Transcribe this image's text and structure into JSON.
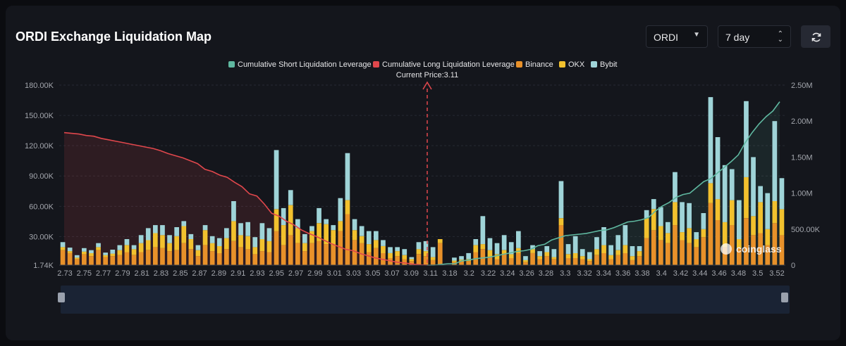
{
  "header": {
    "title": "ORDI Exchange Liquidation Map",
    "symbol": "ORDI",
    "range": "7 day",
    "symbol_icon": "chevron-down-icon",
    "range_icon": "up-down-icon",
    "refresh_icon": "refresh-icon"
  },
  "colors": {
    "short_line": "#5fb8a0",
    "long_line": "#e0474c",
    "binance": "#e8912a",
    "okx": "#f2c12e",
    "bybit": "#9fd4d8",
    "current_price": "#e0474c"
  },
  "watermark": "coinglass",
  "chart_data": {
    "type": "bar",
    "stacked": true,
    "legend": [
      "Cumulative Short Liquidation Leverage",
      "Cumulative Long Liquidation Leverage",
      "Binance",
      "OKX",
      "Bybit"
    ],
    "legend_position": "top",
    "current_price_label": "Current Price:3.11",
    "current_price": 3.11,
    "y_left": {
      "ticks": [
        "1.74K",
        "30.00K",
        "60.00K",
        "90.00K",
        "120.00K",
        "150.00K",
        "180.00K"
      ],
      "range": [
        1740,
        180000
      ]
    },
    "y_right": {
      "ticks": [
        "0",
        "500.00K",
        "1.00M",
        "1.50M",
        "2.00M",
        "2.50M"
      ],
      "range": [
        0,
        2500000
      ]
    },
    "x_tick_labels": [
      "2.73",
      "2.75",
      "2.77",
      "2.79",
      "2.81",
      "2.83",
      "2.85",
      "2.87",
      "2.89",
      "2.91",
      "2.93",
      "2.95",
      "2.97",
      "2.99",
      "3.01",
      "3.03",
      "3.05",
      "3.07",
      "3.09",
      "3.11",
      "3.18",
      "3.2",
      "3.22",
      "3.24",
      "3.26",
      "3.28",
      "3.3",
      "3.32",
      "3.34",
      "3.36",
      "3.38",
      "3.4",
      "3.42",
      "3.44",
      "3.46",
      "3.48",
      "3.5",
      "3.52"
    ],
    "grid": true,
    "bars": [
      [
        15000,
        3000,
        5000
      ],
      [
        12000,
        2000,
        3500
      ],
      [
        6000,
        1500,
        2500
      ],
      [
        11000,
        2500,
        3500
      ],
      [
        9000,
        3000,
        3000
      ],
      [
        15000,
        3000,
        4000
      ],
      [
        8000,
        2000,
        2500
      ],
      [
        9000,
        2500,
        4000
      ],
      [
        10000,
        5000,
        5000
      ],
      [
        13000,
        7000,
        6000
      ],
      [
        10000,
        6000,
        4000
      ],
      [
        13000,
        9000,
        8000
      ],
      [
        15000,
        10000,
        12000
      ],
      [
        18000,
        14000,
        8000
      ],
      [
        17000,
        13000,
        10000
      ],
      [
        14000,
        8000,
        8000
      ],
      [
        15000,
        14000,
        9000
      ],
      [
        22000,
        17000,
        5000
      ],
      [
        16000,
        10000,
        5000
      ],
      [
        9000,
        6000,
        5000
      ],
      [
        20000,
        15000,
        5000
      ],
      [
        14000,
        8000,
        7000
      ],
      [
        12000,
        7000,
        8000
      ],
      [
        16000,
        11000,
        10000
      ],
      [
        24000,
        20000,
        20000
      ],
      [
        18000,
        12000,
        12000
      ],
      [
        16000,
        13000,
        14000
      ],
      [
        11000,
        7000,
        10000
      ],
      [
        14000,
        12000,
        16000
      ],
      [
        13000,
        11000,
        13000
      ],
      [
        34000,
        22000,
        59000
      ],
      [
        20000,
        20000,
        17000
      ],
      [
        30000,
        30000,
        15000
      ],
      [
        22000,
        15000,
        9000
      ],
      [
        14000,
        8000,
        9000
      ],
      [
        22000,
        12000,
        5000
      ],
      [
        24000,
        18000,
        15000
      ],
      [
        21000,
        20000,
        5000
      ],
      [
        20000,
        15000,
        5000
      ],
      [
        34000,
        10000,
        23000
      ],
      [
        51000,
        14000,
        47000
      ],
      [
        25000,
        10000,
        11000
      ],
      [
        22000,
        7000,
        10000
      ],
      [
        13000,
        8000,
        13000
      ],
      [
        17000,
        8000,
        9000
      ],
      [
        12000,
        7000,
        6000
      ],
      [
        7000,
        5000,
        6000
      ],
      [
        9000,
        5000,
        4000
      ],
      [
        6000,
        4000,
        6000
      ],
      [
        4000,
        2000,
        2000
      ],
      [
        11000,
        5000,
        7000
      ],
      [
        9000,
        5000,
        10000
      ],
      [
        5000,
        3000,
        10000
      ],
      [
        22000,
        4000,
        0
      ],
      [
        0,
        0,
        0
      ],
      [
        3000,
        1500,
        3000
      ],
      [
        3500,
        2000,
        3500
      ],
      [
        4000,
        2000,
        6000
      ],
      [
        13000,
        7000,
        6000
      ],
      [
        16000,
        5000,
        28000
      ],
      [
        8000,
        7000,
        12000
      ],
      [
        6000,
        5000,
        11000
      ],
      [
        11000,
        4000,
        15000
      ],
      [
        7000,
        4000,
        12000
      ],
      [
        12000,
        5000,
        17000
      ],
      [
        3000,
        2000,
        4000
      ],
      [
        12000,
        4000,
        4000
      ],
      [
        6000,
        3000,
        5000
      ],
      [
        9000,
        4000,
        6000
      ],
      [
        6000,
        2000,
        8000
      ],
      [
        40000,
        7000,
        37000
      ],
      [
        7000,
        4000,
        10000
      ],
      [
        7000,
        5000,
        17000
      ],
      [
        6000,
        3000,
        7000
      ],
      [
        4000,
        2000,
        7000
      ],
      [
        10000,
        6000,
        12000
      ],
      [
        12000,
        8000,
        18000
      ],
      [
        6000,
        4000,
        10000
      ],
      [
        10000,
        5000,
        15000
      ],
      [
        12000,
        8000,
        20000
      ],
      [
        5000,
        4000,
        10000
      ],
      [
        9000,
        5000,
        5000
      ],
      [
        27000,
        20000,
        8000
      ],
      [
        35000,
        21000,
        10000
      ],
      [
        25000,
        14000,
        19000
      ],
      [
        22000,
        10000,
        11000
      ],
      [
        40000,
        23000,
        30000
      ],
      [
        25000,
        8000,
        30000
      ],
      [
        22000,
        15000,
        25000
      ],
      [
        18000,
        8000,
        7000
      ],
      [
        28000,
        8000,
        16000
      ],
      [
        62000,
        20000,
        86000
      ],
      [
        45000,
        21000,
        62000
      ],
      [
        18000,
        25000,
        57000
      ],
      [
        40000,
        25000,
        31000
      ],
      [
        17000,
        9000,
        39000
      ],
      [
        47000,
        41000,
        76000
      ],
      [
        30000,
        19000,
        59000
      ],
      [
        32000,
        31000,
        16000
      ],
      [
        20000,
        16000,
        36000
      ],
      [
        42000,
        22000,
        80000
      ],
      [
        30000,
        26000,
        31000
      ]
    ],
    "long_cumulative": [
      1840000,
      1830000,
      1820000,
      1800000,
      1790000,
      1760000,
      1740000,
      1720000,
      1700000,
      1680000,
      1660000,
      1640000,
      1620000,
      1590000,
      1550000,
      1520000,
      1490000,
      1450000,
      1410000,
      1330000,
      1300000,
      1250000,
      1220000,
      1150000,
      1090000,
      990000,
      960000,
      850000,
      720000,
      680000,
      610000,
      560000,
      490000,
      440000,
      400000,
      350000,
      300000,
      260000,
      220000,
      200000,
      160000,
      130000,
      100000,
      80000,
      60000,
      40000,
      30000,
      15000,
      5000,
      0
    ],
    "short_cumulative": [
      0,
      0,
      10000,
      20000,
      20000,
      60000,
      70000,
      90000,
      100000,
      110000,
      130000,
      150000,
      170000,
      190000,
      200000,
      220000,
      270000,
      290000,
      350000,
      380000,
      410000,
      420000,
      430000,
      440000,
      460000,
      480000,
      490000,
      520000,
      560000,
      600000,
      610000,
      630000,
      660000,
      750000,
      820000,
      870000,
      940000,
      980000,
      1000000,
      1080000,
      1160000,
      1200000,
      1280000,
      1360000,
      1440000,
      1530000,
      1700000,
      1840000,
      1960000,
      2060000,
      2140000,
      2270000
    ]
  }
}
